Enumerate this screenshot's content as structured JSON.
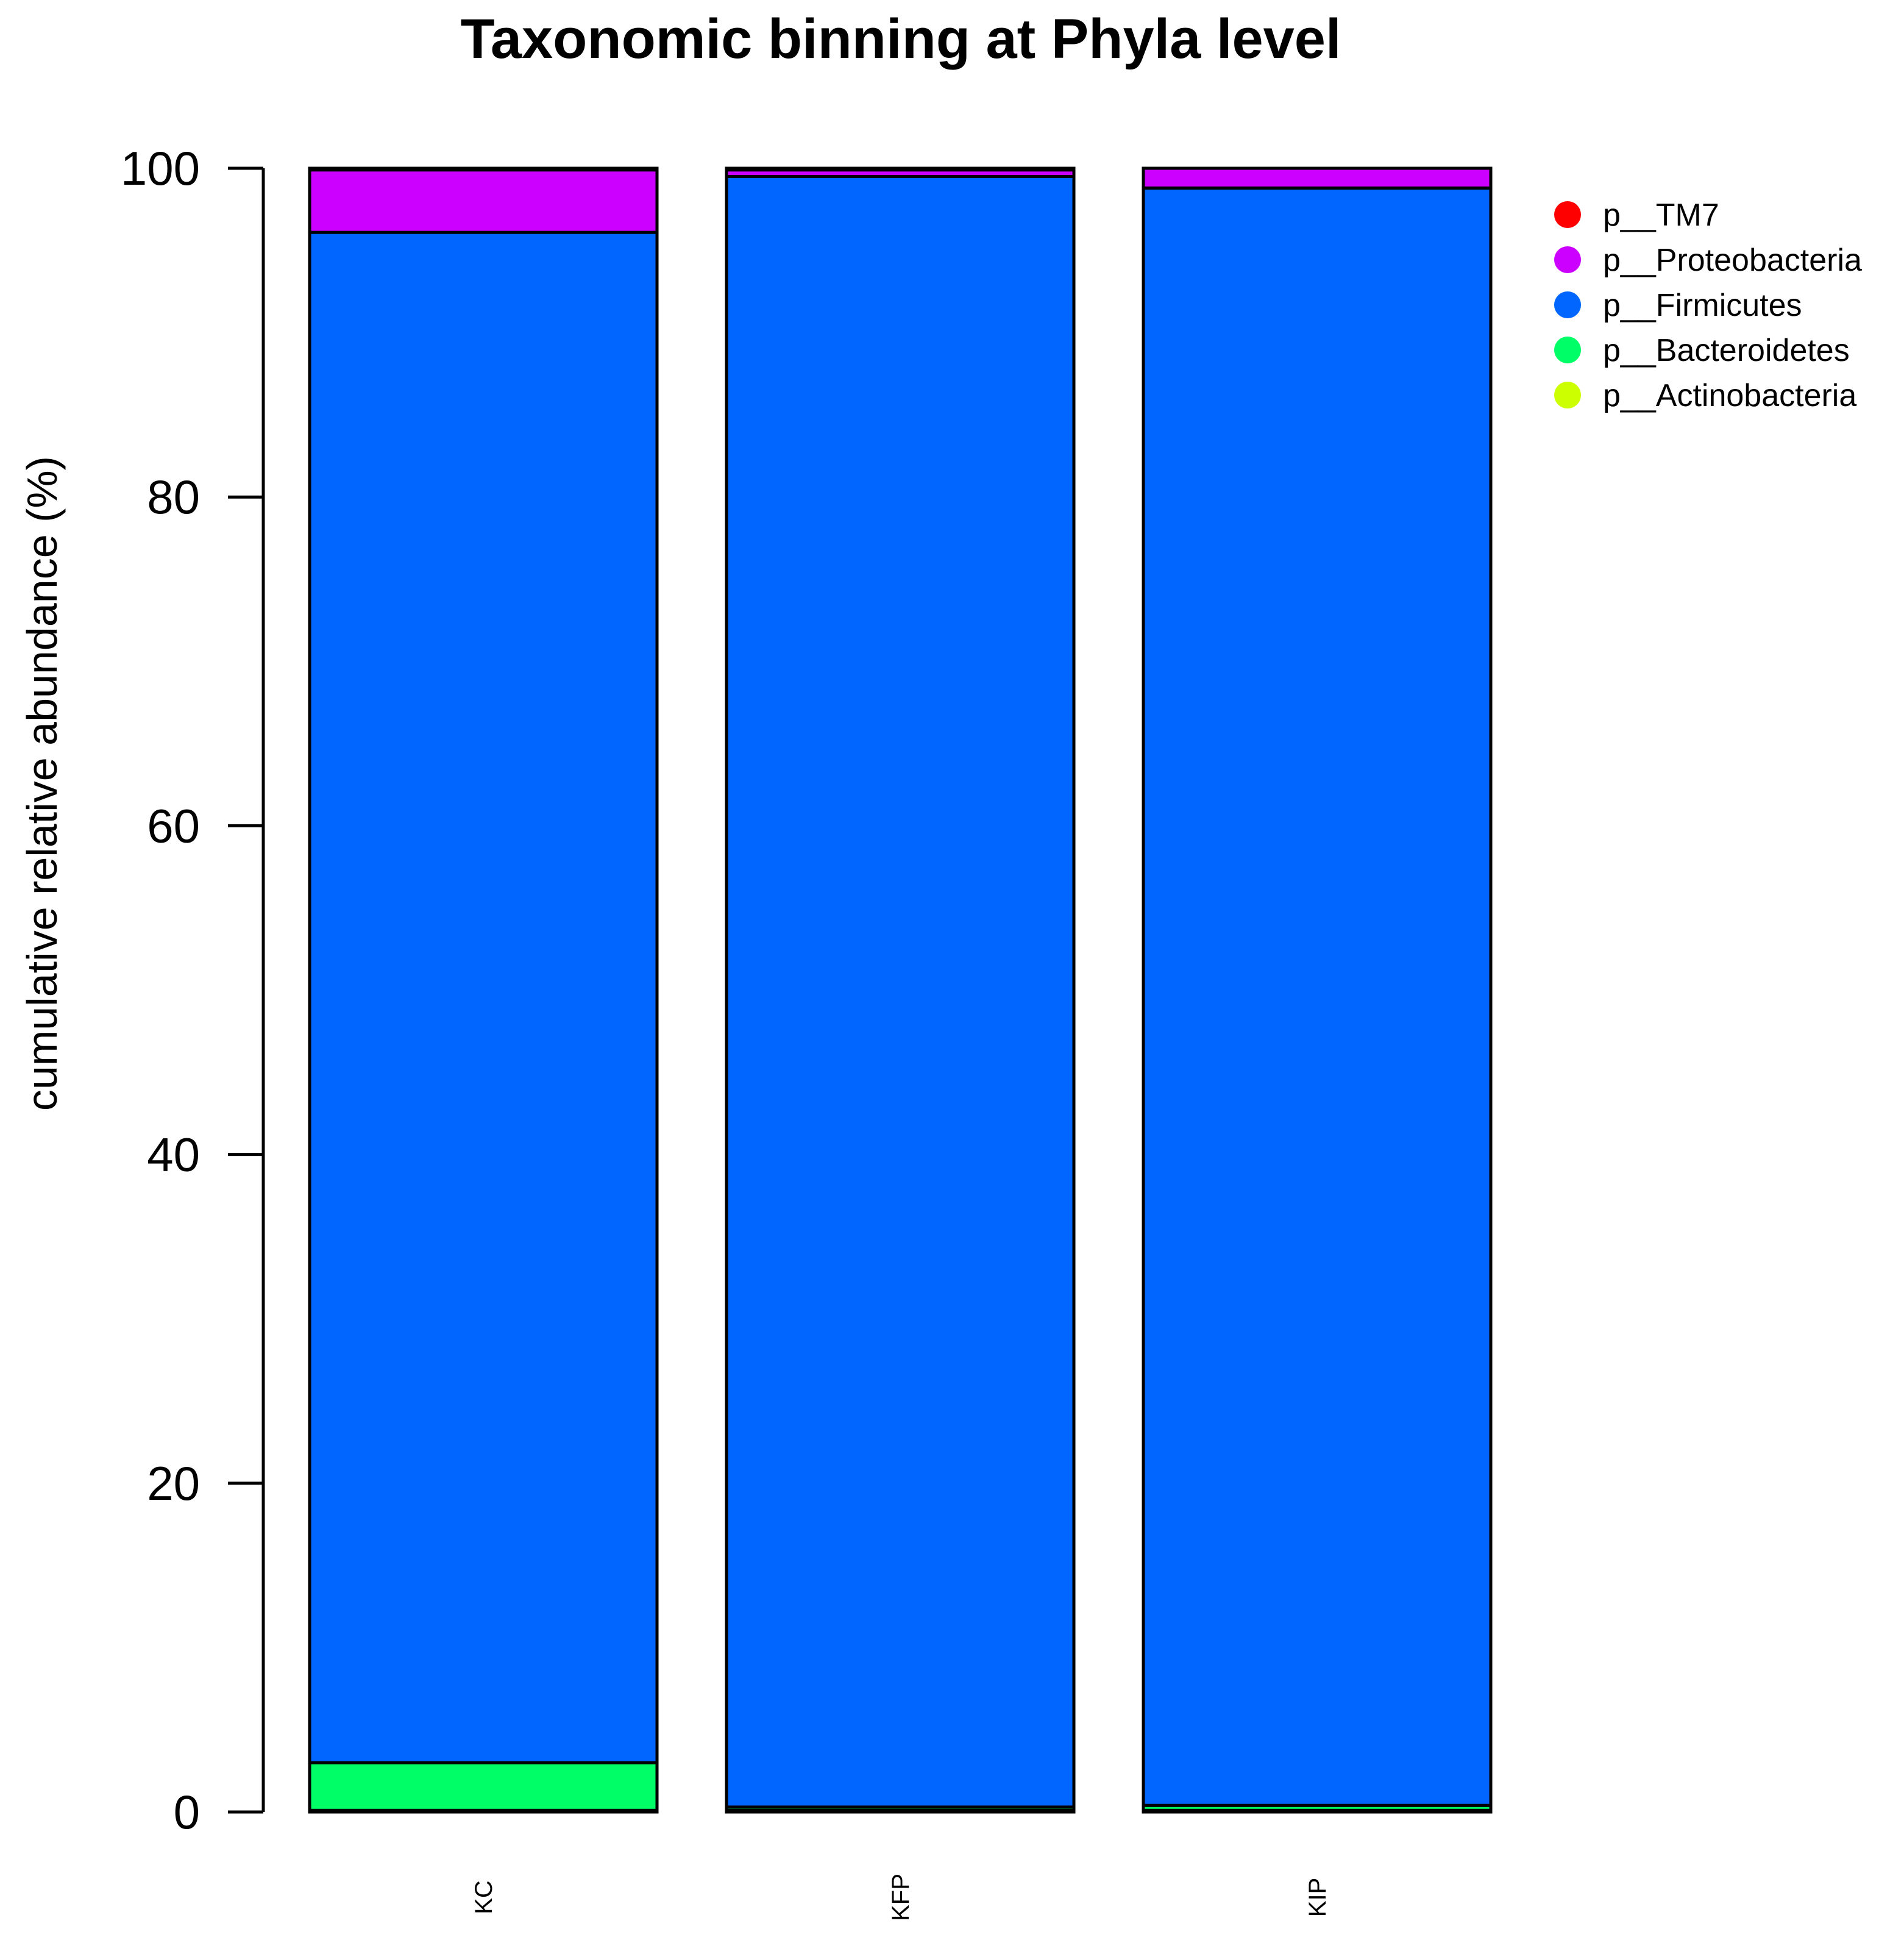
{
  "chart_data": {
    "type": "bar",
    "stacked": true,
    "title": "Taxonomic binning at Phyla level",
    "xlabel": "",
    "ylabel": "cumulative relative abundance (%)",
    "ylim": [
      0,
      100
    ],
    "yticks": [
      0,
      20,
      40,
      60,
      80,
      100
    ],
    "grid": false,
    "legend_position": "top-right",
    "categories": [
      "KC",
      "KFP",
      "KIP"
    ],
    "series": [
      {
        "name": "p__Actinobacteria",
        "color": "#CCFF00",
        "values": [
          0.1,
          0.1,
          0.1
        ]
      },
      {
        "name": "p__Bacteroidetes",
        "color": "#00FF66",
        "values": [
          2.9,
          0.2,
          0.3
        ]
      },
      {
        "name": "p__Firmicutes",
        "color": "#0066FF",
        "values": [
          93.1,
          99.2,
          98.4
        ]
      },
      {
        "name": "p__Proteobacteria",
        "color": "#CC00FF",
        "values": [
          3.8,
          0.4,
          1.2
        ]
      },
      {
        "name": "p__TM7",
        "color": "#FF0000",
        "values": [
          0.1,
          0.1,
          0.0
        ]
      }
    ],
    "legend_order": [
      "p__TM7",
      "p__Proteobacteria",
      "p__Firmicutes",
      "p__Bacteroidetes",
      "p__Actinobacteria"
    ]
  }
}
